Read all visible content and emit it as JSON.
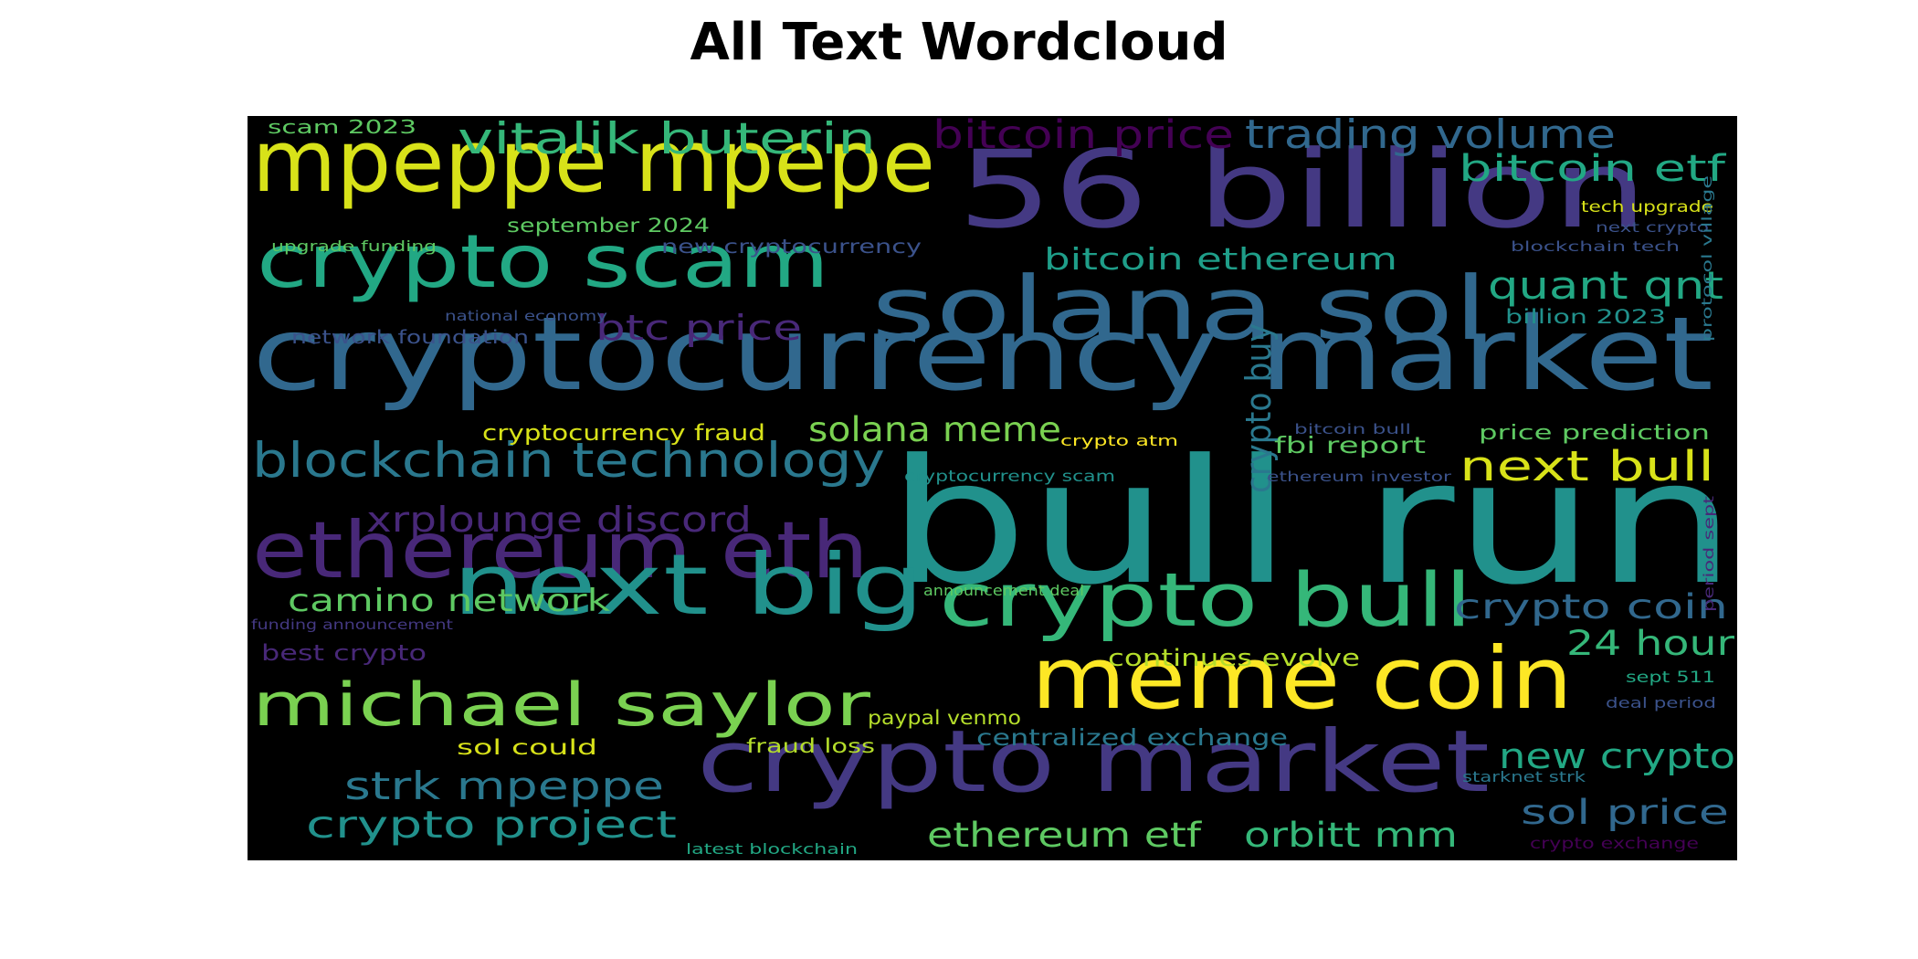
{
  "title": "All Text Wordcloud",
  "words": [
    {
      "text": "bull run",
      "color": "#21918c"
    },
    {
      "text": "cryptocurrency market",
      "color": "#31688e"
    },
    {
      "text": "56 billion",
      "color": "#443983"
    },
    {
      "text": "mpeppe mpepe",
      "color": "#d8e219"
    },
    {
      "text": "solana sol",
      "color": "#31688e"
    },
    {
      "text": "crypto scam",
      "color": "#22a884"
    },
    {
      "text": "ethereum eth",
      "color": "#482878"
    },
    {
      "text": "next big",
      "color": "#21918c"
    },
    {
      "text": "crypto market",
      "color": "#443983"
    },
    {
      "text": "meme coin",
      "color": "#fde725"
    },
    {
      "text": "crypto bull",
      "color": "#35b779"
    },
    {
      "text": "michael saylor",
      "color": "#7ad151"
    },
    {
      "text": "blockchain technology",
      "color": "#2a788e"
    },
    {
      "text": "vitalik buterin",
      "color": "#35b779"
    },
    {
      "text": "trading volume",
      "color": "#31688e"
    },
    {
      "text": "bitcoin price",
      "color": "#440154"
    },
    {
      "text": "bitcoin etf",
      "color": "#22a884"
    },
    {
      "text": "quant qnt",
      "color": "#22a884"
    },
    {
      "text": "bitcoin ethereum",
      "color": "#1f9e89"
    },
    {
      "text": "btc price",
      "color": "#482878"
    },
    {
      "text": "crypto buy",
      "color": "#2a788e"
    },
    {
      "text": "next bull",
      "color": "#d8e219"
    },
    {
      "text": "solana meme",
      "color": "#7ad151"
    },
    {
      "text": "xrplounge discord",
      "color": "#482878"
    },
    {
      "text": "camino network",
      "color": "#5ec962"
    },
    {
      "text": "crypto coin",
      "color": "#31688e"
    },
    {
      "text": "24 hour",
      "color": "#35b779"
    },
    {
      "text": "strk mpeppe",
      "color": "#2a788e"
    },
    {
      "text": "crypto project",
      "color": "#21918c"
    },
    {
      "text": "new crypto",
      "color": "#22a884"
    },
    {
      "text": "sol price",
      "color": "#31688e"
    },
    {
      "text": "ethereum etf",
      "color": "#5ec962"
    },
    {
      "text": "orbitt mm",
      "color": "#35b779"
    },
    {
      "text": "fbi report",
      "color": "#5ec962"
    },
    {
      "text": "cryptocurrency fraud",
      "color": "#d8e219"
    },
    {
      "text": "continues evolve",
      "color": "#b5de2b"
    },
    {
      "text": "centralized exchange",
      "color": "#2a788e"
    },
    {
      "text": "price prediction",
      "color": "#5ec962"
    },
    {
      "text": "september 2024",
      "color": "#5ec962"
    },
    {
      "text": "new cryptocurrency",
      "color": "#3b528b"
    },
    {
      "text": "scam 2023",
      "color": "#5ec962"
    },
    {
      "text": "best crypto",
      "color": "#482878"
    },
    {
      "text": "paypal venmo",
      "color": "#b5de2b"
    },
    {
      "text": "sol could",
      "color": "#d8e219"
    },
    {
      "text": "fraud loss",
      "color": "#b5de2b"
    },
    {
      "text": "network foundation",
      "color": "#3b528b"
    },
    {
      "text": "billion 2023",
      "color": "#21918c"
    },
    {
      "text": "tech upgrade",
      "color": "#d8e219"
    },
    {
      "text": "upgrade funding",
      "color": "#5ec962"
    },
    {
      "text": "national economy",
      "color": "#3b528b"
    },
    {
      "text": "next crypto",
      "color": "#3b528b"
    },
    {
      "text": "blockchain tech",
      "color": "#3b528b"
    },
    {
      "text": "protocol village",
      "color": "#2a788e"
    },
    {
      "text": "crypto atm",
      "color": "#fde725"
    },
    {
      "text": "bitcoin bull",
      "color": "#3b528b"
    },
    {
      "text": "cryptocurrency scam",
      "color": "#21918c"
    },
    {
      "text": "ethereum investor",
      "color": "#3b528b"
    },
    {
      "text": "announcement deal",
      "color": "#5ec962"
    },
    {
      "text": "funding announcement",
      "color": "#443983"
    },
    {
      "text": "period sept",
      "color": "#482878"
    },
    {
      "text": "sept 511",
      "color": "#22a884"
    },
    {
      "text": "deal period",
      "color": "#3b528b"
    },
    {
      "text": "starknet strk",
      "color": "#2a788e"
    },
    {
      "text": "crypto exchange",
      "color": "#440154"
    },
    {
      "text": "latest blockchain",
      "color": "#22a884"
    }
  ]
}
